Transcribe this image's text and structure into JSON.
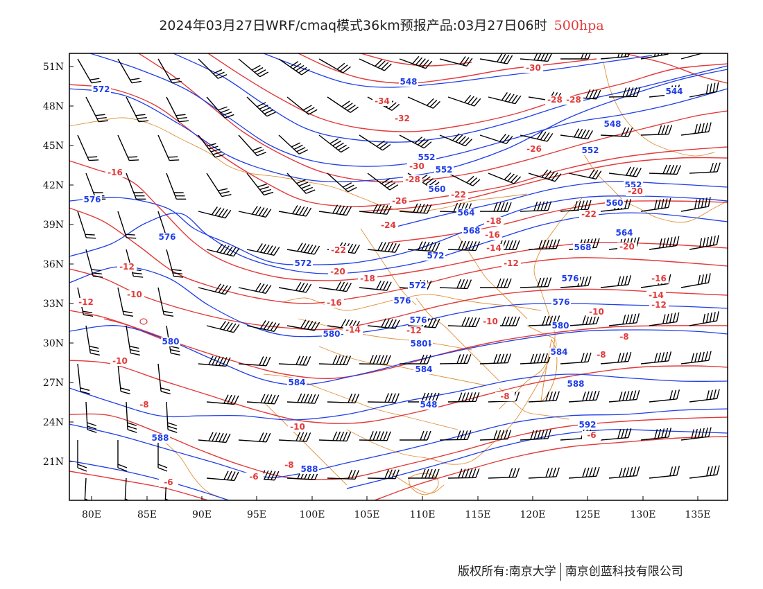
{
  "title": {
    "text": "2024年03月27日WRF/cmaq模式36km预报产品:03月27日06时",
    "level": "500hpa"
  },
  "colors": {
    "height_contour": "#1f3ee8",
    "temperature_contour": "#e23a3a",
    "border": "#e0913b",
    "wind_barb": "#000000"
  },
  "map": {
    "lon_labels": [
      "80E",
      "85E",
      "90E",
      "95E",
      "100E",
      "105E",
      "110E",
      "115E",
      "120E",
      "125E",
      "130E",
      "135E"
    ],
    "lat_labels": [
      "51N",
      "48N",
      "45N",
      "42N",
      "39N",
      "36N",
      "33N",
      "30N",
      "27N",
      "24N",
      "21N"
    ],
    "height_labels": [
      "572",
      "576",
      "576",
      "572",
      "572",
      "576",
      "576",
      "580",
      "580",
      "584",
      "584",
      "588",
      "588",
      "588",
      "548",
      "552",
      "560",
      "564",
      "568",
      "572",
      "576",
      "580",
      "584",
      "588",
      "592",
      "552",
      "548",
      "544",
      "560",
      "564",
      "568",
      "552",
      "548",
      "552",
      "576",
      "580",
      "584"
    ],
    "temp_labels": [
      "-16",
      "-12",
      "-12",
      "-10",
      "-10",
      "-8",
      "-6",
      "-24",
      "-22",
      "-20",
      "-18",
      "-16",
      "-14",
      "-12",
      "-10",
      "-8",
      "-8",
      "-30",
      "-28",
      "-28",
      "-26",
      "-24",
      "-22",
      "-22",
      "-20",
      "-20",
      "-18",
      "-16",
      "-14",
      "-12",
      "-10",
      "-8",
      "-6",
      "-34",
      "-32",
      "-30",
      "-28",
      "-26",
      "-16",
      "-14",
      "-12",
      "-10",
      "-8",
      "-6"
    ]
  },
  "footer": {
    "left": "版权所有:南京大学",
    "right": "南京创蓝科技有限公司"
  }
}
